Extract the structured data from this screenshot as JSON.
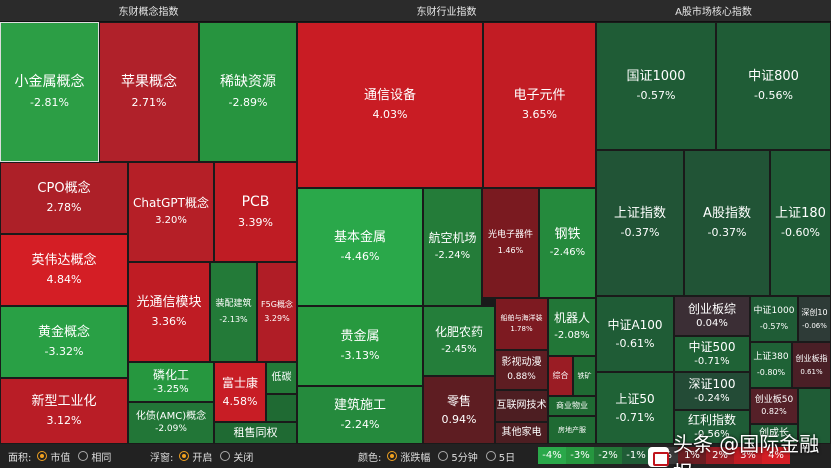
{
  "panels": {
    "concept": {
      "title": "东财概念指数"
    },
    "industry": {
      "title": "东财行业指数"
    },
    "core": {
      "title": "A股市场核心指数"
    }
  },
  "tiles": {
    "concept": [
      {
        "name": "小金属概念",
        "value": "-2.81%",
        "color": "#2c9e45"
      },
      {
        "name": "苹果概念",
        "value": "2.71%",
        "color": "#b0212a"
      },
      {
        "name": "稀缺资源",
        "value": "-2.89%",
        "color": "#27943f"
      },
      {
        "name": "CPO概念",
        "value": "2.78%",
        "color": "#ad2028"
      },
      {
        "name": "ChatGPT概念",
        "value": "3.20%",
        "color": "#b51f27"
      },
      {
        "name": "PCB",
        "value": "3.39%",
        "color": "#bf1c24"
      },
      {
        "name": "英伟达概念",
        "value": "4.84%",
        "color": "#d41e25"
      },
      {
        "name": "光通信模块",
        "value": "3.36%",
        "color": "#bf1c24"
      },
      {
        "name": "装配建筑",
        "value": "-2.13%",
        "color": "#237a38"
      },
      {
        "name": "F5G概念",
        "value": "3.29%",
        "color": "#b01d26"
      },
      {
        "name": "黄金概念",
        "value": "-3.32%",
        "color": "#29a045"
      },
      {
        "name": "磷化工",
        "value": "-3.25%",
        "color": "#26973f"
      },
      {
        "name": "富士康",
        "value": "4.58%",
        "color": "#c81d25"
      },
      {
        "name": "低碳",
        "value": "",
        "color": "#237a38"
      },
      {
        "name": "新型工业化",
        "value": "3.12%",
        "color": "#b91d26"
      },
      {
        "name": "化债(AMC)概念",
        "value": "-2.09%",
        "color": "#227637"
      },
      {
        "name": "租售同权",
        "value": "",
        "color": "#1f6a33"
      }
    ],
    "industry": [
      {
        "name": "通信设备",
        "value": "4.03%",
        "color": "#c91c24"
      },
      {
        "name": "电子元件",
        "value": "3.65%",
        "color": "#c21c24"
      },
      {
        "name": "基本金属",
        "value": "-4.46%",
        "color": "#2aa84a"
      },
      {
        "name": "航空机场",
        "value": "-2.24%",
        "color": "#247c39"
      },
      {
        "name": "光电子器件",
        "value": "1.46%",
        "color": "#7a1a20"
      },
      {
        "name": "钢铁",
        "value": "-2.46%",
        "color": "#258a3d"
      },
      {
        "name": "贵金属",
        "value": "-3.13%",
        "color": "#27993f"
      },
      {
        "name": "化肥农药",
        "value": "-2.45%",
        "color": "#247e3a"
      },
      {
        "name": "船舶与海洋装",
        "value": "1.78%",
        "color": "#7d1a21"
      },
      {
        "name": "机器人",
        "value": "-2.08%",
        "color": "#227637"
      },
      {
        "name": "影视动漫",
        "value": "0.88%",
        "color": "#5e1d22"
      },
      {
        "name": "综合",
        "value": "",
        "color": "#9a1c24"
      },
      {
        "name": "铁矿",
        "value": "",
        "color": "#1f6a33"
      },
      {
        "name": "建筑施工",
        "value": "-2.24%",
        "color": "#258a3d"
      },
      {
        "name": "零售",
        "value": "0.94%",
        "color": "#5e1d22"
      },
      {
        "name": "互联网技术",
        "value": "",
        "color": "#4d1e22"
      },
      {
        "name": "商业物业",
        "value": "",
        "color": "#1f6a33"
      },
      {
        "name": "其他家电",
        "value": "",
        "color": "#4d1e22"
      },
      {
        "name": "房地产服",
        "value": "",
        "color": "#1f6a33"
      }
    ],
    "core": [
      {
        "name": "国证1000",
        "value": "-0.57%",
        "color": "#1f5c36"
      },
      {
        "name": "中证800",
        "value": "-0.56%",
        "color": "#1f5c36"
      },
      {
        "name": "上证指数",
        "value": "-0.37%",
        "color": "#215436"
      },
      {
        "name": "A股指数",
        "value": "-0.37%",
        "color": "#215436"
      },
      {
        "name": "上证180",
        "value": "-0.60%",
        "color": "#1f5c36"
      },
      {
        "name": "中证A100",
        "value": "-0.61%",
        "color": "#1f5c36"
      },
      {
        "name": "创业板综",
        "value": "0.04%",
        "color": "#3b2e35"
      },
      {
        "name": "中证1000",
        "value": "-0.57%",
        "color": "#1f5c36"
      },
      {
        "name": "深创10",
        "value": "-0.06%",
        "color": "#2e3b37"
      },
      {
        "name": "中证500",
        "value": "-0.71%",
        "color": "#1f6236"
      },
      {
        "name": "上证380",
        "value": "-0.80%",
        "color": "#1f6236"
      },
      {
        "name": "创业板指",
        "value": "0.61%",
        "color": "#4a1f26"
      },
      {
        "name": "上证50",
        "value": "-0.71%",
        "color": "#1f6236"
      },
      {
        "name": "深证100",
        "value": "-0.24%",
        "color": "#234b36"
      },
      {
        "name": "创业板50",
        "value": "0.82%",
        "color": "#552028"
      },
      {
        "name": "红利指数",
        "value": "-0.56%",
        "color": "#1f5c36"
      },
      {
        "name": "创成长",
        "value": "",
        "color": "#1f5c36"
      }
    ]
  },
  "toolbar": {
    "area_label": "面积:",
    "area_option_1": "市值",
    "area_option_2": "相同",
    "float_label": "浮窗:",
    "float_option_1": "开启",
    "float_option_2": "关闭",
    "color_label": "颜色:",
    "color_option_1": "涨跌幅",
    "color_option_2": "5分钟",
    "color_option_3": "5日"
  },
  "legend": [
    {
      "label": "-4%",
      "color": "#2aa84a"
    },
    {
      "label": "-3%",
      "color": "#26973f"
    },
    {
      "label": "-2%",
      "color": "#227637"
    },
    {
      "label": "-1%",
      "color": "#1f5c36"
    },
    {
      "label": "0%",
      "color": "#3a3a3a"
    },
    {
      "label": "1%",
      "color": "#6a1d22"
    },
    {
      "label": "2%",
      "color": "#9a1c24"
    },
    {
      "label": "3%",
      "color": "#bf1c24"
    },
    {
      "label": "4%",
      "color": "#d41e25"
    }
  ],
  "watermark": {
    "text": "头条 @国际金融报"
  }
}
